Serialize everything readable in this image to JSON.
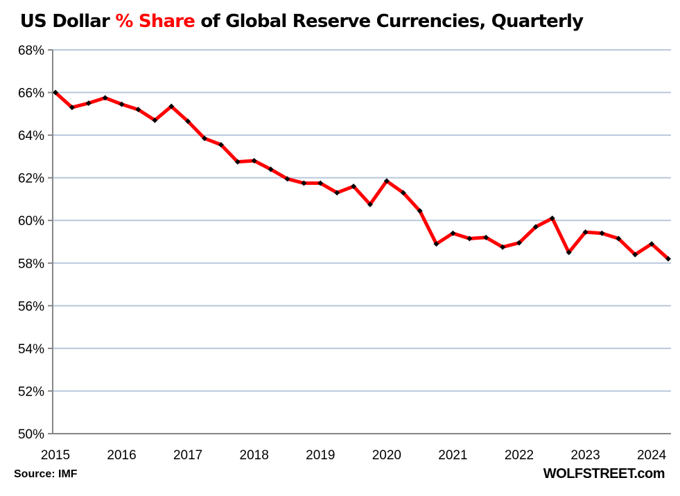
{
  "title": {
    "prefix": "US Dollar ",
    "highlight": "% Share",
    "suffix": " of Global Reserve Currencies, Quarterly"
  },
  "footer": {
    "source": "Source: IMF",
    "brand": "WOLFSTREET.com"
  },
  "colors": {
    "line": "#ff0000",
    "marker": "#000000",
    "grid": "#b9c7dc",
    "axis": "#868686",
    "highlight": "#ff0000"
  },
  "chart_data": {
    "type": "line",
    "title": "US Dollar % Share of Global Reserve Currencies, Quarterly",
    "xlabel": "",
    "ylabel": "",
    "ylim": [
      50,
      68
    ],
    "y_ticks": [
      50,
      52,
      54,
      56,
      58,
      60,
      62,
      64,
      66,
      68
    ],
    "y_tick_labels": [
      "50%",
      "52%",
      "54%",
      "56%",
      "58%",
      "60%",
      "62%",
      "64%",
      "66%",
      "68%"
    ],
    "x_tick_labels": [
      "2015",
      "2016",
      "2017",
      "2018",
      "2019",
      "2020",
      "2021",
      "2022",
      "2023",
      "2024"
    ],
    "grid": true,
    "legend": "none",
    "series": [
      {
        "name": "USD share",
        "x": [
          "2015Q1",
          "2015Q2",
          "2015Q3",
          "2015Q4",
          "2016Q1",
          "2016Q2",
          "2016Q3",
          "2016Q4",
          "2017Q1",
          "2017Q2",
          "2017Q3",
          "2017Q4",
          "2018Q1",
          "2018Q2",
          "2018Q3",
          "2018Q4",
          "2019Q1",
          "2019Q2",
          "2019Q3",
          "2019Q4",
          "2020Q1",
          "2020Q2",
          "2020Q3",
          "2020Q4",
          "2021Q1",
          "2021Q2",
          "2021Q3",
          "2021Q4",
          "2022Q1",
          "2022Q2",
          "2022Q3",
          "2022Q4",
          "2023Q1",
          "2023Q2",
          "2023Q3",
          "2023Q4",
          "2024Q1",
          "2024Q2"
        ],
        "values": [
          66.0,
          65.3,
          65.5,
          65.75,
          65.45,
          65.2,
          64.7,
          65.35,
          64.65,
          63.85,
          63.55,
          62.75,
          62.8,
          62.4,
          61.95,
          61.75,
          61.75,
          61.3,
          61.6,
          60.75,
          61.85,
          61.3,
          60.45,
          58.9,
          59.4,
          59.15,
          59.2,
          58.75,
          58.95,
          59.7,
          60.1,
          58.5,
          59.45,
          59.4,
          59.15,
          58.4,
          58.9,
          58.2
        ]
      }
    ]
  }
}
